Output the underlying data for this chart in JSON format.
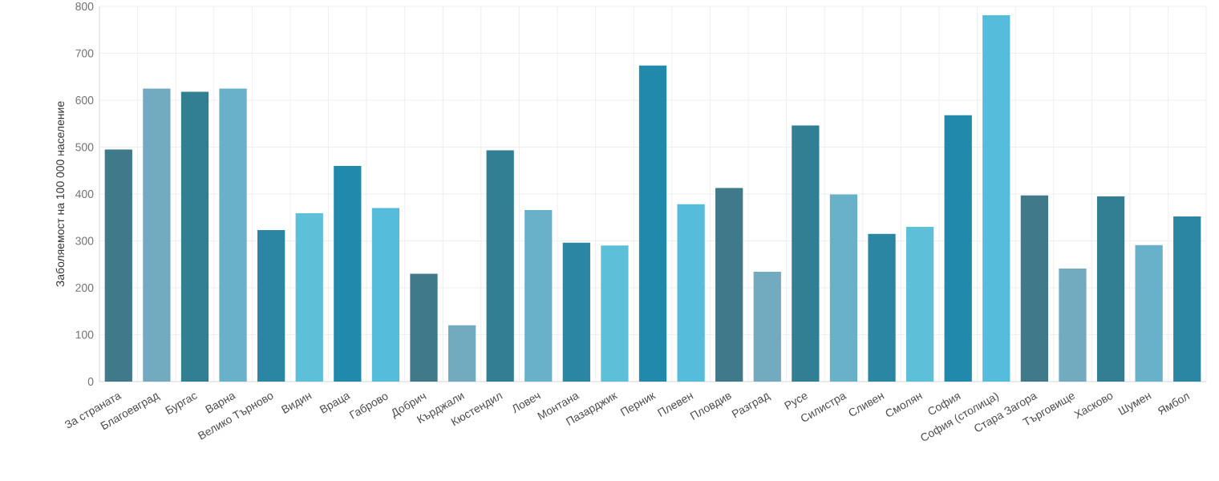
{
  "chart_data": {
    "type": "bar",
    "ylabel": "Заболяемост на 100 000 население",
    "categories": [
      "За страната",
      "Благоевград",
      "Бургас",
      "Варна",
      "Велико Търново",
      "Видин",
      "Враца",
      "Габрово",
      "Добрич",
      "Кърджали",
      "Кюстендил",
      "Ловеч",
      "Монтана",
      "Пазарджик",
      "Перник",
      "Плевен",
      "Пловдив",
      "Разград",
      "Русе",
      "Силистра",
      "Сливен",
      "Смолян",
      "София",
      "София (столица)",
      "Стара Загора",
      "Търговище",
      "Хасково",
      "Шумен",
      "Ямбол"
    ],
    "values": [
      495,
      625,
      618,
      625,
      323,
      359,
      460,
      370,
      230,
      120,
      493,
      366,
      296,
      290,
      674,
      378,
      413,
      234,
      546,
      399,
      315,
      330,
      568,
      781,
      397,
      241,
      395,
      291,
      352
    ],
    "colors": [
      "#40798a",
      "#72aabf",
      "#317f93",
      "#68b1c8",
      "#2a86a2",
      "#5dbfd8",
      "#2089ac",
      "#55bcdc",
      "#40798a",
      "#72aabf",
      "#317f93",
      "#68b1c8",
      "#2a86a2",
      "#5dbfd8",
      "#2089ac",
      "#55bcdc",
      "#40798a",
      "#72aabf",
      "#317f93",
      "#68b1c8",
      "#2a86a2",
      "#5dbfd8",
      "#2089ac",
      "#55bcdc",
      "#40798a",
      "#72aabf",
      "#317f93",
      "#68b1c8",
      "#2a86a2"
    ],
    "ylim": [
      0,
      800
    ],
    "yticks": [
      0,
      100,
      200,
      300,
      400,
      500,
      600,
      700,
      800
    ],
    "grid": true
  }
}
